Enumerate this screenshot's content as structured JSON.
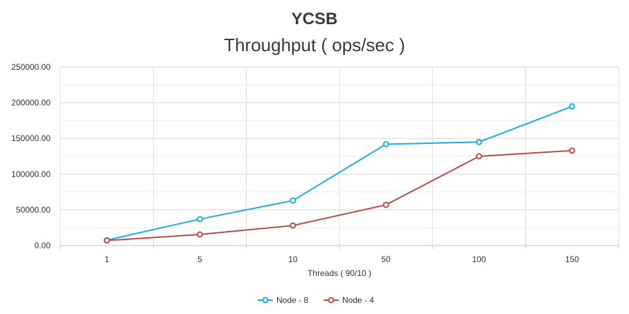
{
  "chart_data": {
    "type": "line",
    "title": "YCSB",
    "subtitle": "Throughput ( ops/sec )",
    "xlabel": "Threads ( 90/10 )",
    "ylabel": "",
    "categories": [
      "1",
      "5",
      "10",
      "50",
      "100",
      "150"
    ],
    "ylim": [
      0,
      250000
    ],
    "y_ticks": [
      "0.00",
      "50000.00",
      "100000.00",
      "150000.00",
      "200000.00",
      "250000.00"
    ],
    "grid": true,
    "legend_position": "bottom",
    "series": [
      {
        "name": "Node - 8",
        "color": "#1aade4",
        "values": [
          7500,
          37000,
          63000,
          142000,
          145000,
          195000
        ]
      },
      {
        "name": "Node - 4",
        "color": "#b94a48",
        "values": [
          7000,
          15500,
          28000,
          57000,
          125000,
          133000
        ]
      }
    ]
  }
}
